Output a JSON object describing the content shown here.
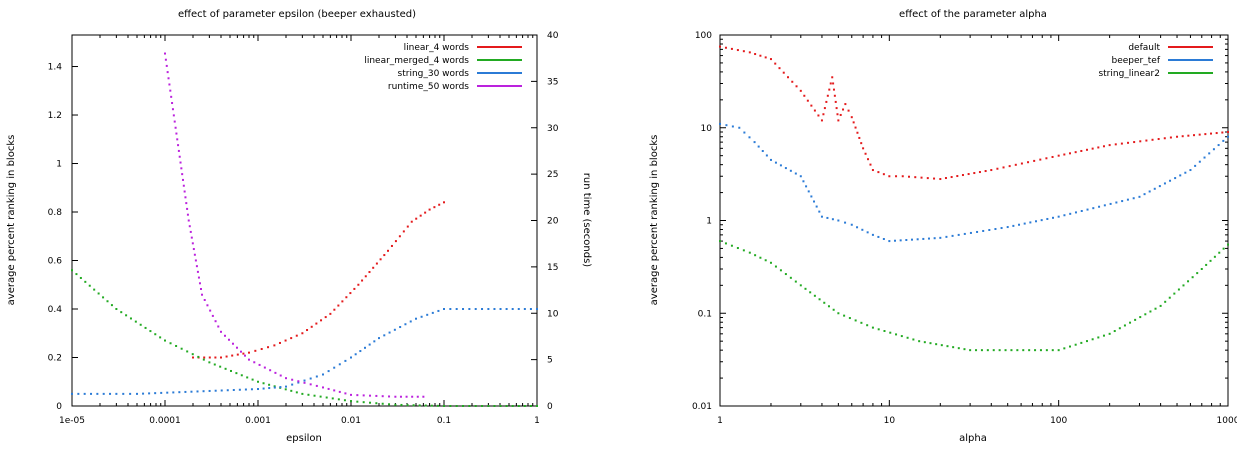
{
  "chart_data": [
    {
      "type": "line",
      "title": "effect of parameter epsilon (beeper exhausted)",
      "xlabel": "epsilon",
      "ylabel": "average percent ranking in blocks",
      "y2label": "run time (seconds)",
      "xscale": "log",
      "xticks": [
        "1e-05",
        "0.0001",
        "0.001",
        "0.01",
        "0.1",
        "1"
      ],
      "xtick_values": [
        1e-05,
        0.0001,
        0.001,
        0.01,
        0.1,
        1
      ],
      "yticks": [
        "0",
        "0.2",
        "0.4",
        "0.6",
        "0.8",
        "1",
        "1.2",
        "1.4"
      ],
      "y2ticks": [
        "0",
        "5",
        "10",
        "15",
        "20",
        "25",
        "30",
        "35",
        "40"
      ],
      "xlim": [
        1e-05,
        1
      ],
      "ylim": [
        0,
        1.53
      ],
      "y2lim": [
        0,
        40
      ],
      "legend_position": "top-right",
      "series": [
        {
          "name": "linear_4 words",
          "color": "#e41a1c",
          "axis": "y",
          "style": "dots",
          "points": [
            [
              0.0002,
              0.2
            ],
            [
              0.0004,
              0.2
            ],
            [
              0.0008,
              0.22
            ],
            [
              0.0015,
              0.25
            ],
            [
              0.003,
              0.3
            ],
            [
              0.006,
              0.38
            ],
            [
              0.012,
              0.5
            ],
            [
              0.025,
              0.64
            ],
            [
              0.045,
              0.76
            ],
            [
              0.07,
              0.81
            ],
            [
              0.1,
              0.84
            ]
          ]
        },
        {
          "name": "linear_merged_4 words",
          "color": "#22aa22",
          "axis": "y",
          "style": "dots",
          "points": [
            [
              1e-05,
              0.56
            ],
            [
              3e-05,
              0.4
            ],
            [
              0.0001,
              0.27
            ],
            [
              0.0003,
              0.18
            ],
            [
              0.001,
              0.1
            ],
            [
              0.003,
              0.05
            ],
            [
              0.01,
              0.02
            ],
            [
              0.03,
              0.005
            ],
            [
              0.1,
              0.0
            ],
            [
              0.3,
              0.0
            ],
            [
              1,
              0.0
            ]
          ]
        },
        {
          "name": "string_30 words",
          "color": "#2b7bd6",
          "axis": "y",
          "style": "dots",
          "points": [
            [
              1e-05,
              0.05
            ],
            [
              3e-05,
              0.05
            ],
            [
              5e-05,
              0.05
            ],
            [
              0.001,
              0.07
            ],
            [
              0.002,
              0.08
            ],
            [
              0.005,
              0.13
            ],
            [
              0.01,
              0.2
            ],
            [
              0.02,
              0.28
            ],
            [
              0.05,
              0.36
            ],
            [
              0.1,
              0.4
            ],
            [
              0.3,
              0.4
            ],
            [
              1,
              0.4
            ]
          ]
        },
        {
          "name": "runtime_50 words",
          "color": "#bb22dd",
          "axis": "y2",
          "style": "dots",
          "points": [
            [
              0.0001,
              38
            ],
            [
              0.00013,
              30
            ],
            [
              0.00018,
              20
            ],
            [
              0.00025,
              12
            ],
            [
              0.0004,
              8
            ],
            [
              0.0008,
              5
            ],
            [
              0.002,
              3
            ],
            [
              0.005,
              2
            ],
            [
              0.01,
              1.2
            ],
            [
              0.03,
              1
            ],
            [
              0.06,
              1
            ]
          ]
        }
      ]
    },
    {
      "type": "line",
      "title": "effect of the parameter alpha",
      "xlabel": "alpha",
      "ylabel": "average percent ranking in blocks",
      "xscale": "log",
      "yscale": "log",
      "xticks": [
        "1",
        "10",
        "100",
        "1000"
      ],
      "xtick_values": [
        1,
        10,
        100,
        1000
      ],
      "yticks": [
        "0.01",
        "0.1",
        "1",
        "10",
        "100"
      ],
      "ytick_values": [
        0.01,
        0.1,
        1,
        10,
        100
      ],
      "xlim": [
        1,
        1000
      ],
      "ylim": [
        0.01,
        100
      ],
      "legend_position": "top-right",
      "series": [
        {
          "name": "default",
          "color": "#e41a1c",
          "style": "dots",
          "points": [
            [
              1,
              75
            ],
            [
              1.5,
              65
            ],
            [
              2,
              55
            ],
            [
              3,
              25
            ],
            [
              4,
              12
            ],
            [
              4.6,
              35
            ],
            [
              5,
              12
            ],
            [
              5.5,
              18
            ],
            [
              6,
              13
            ],
            [
              7,
              6
            ],
            [
              8,
              3.5
            ],
            [
              10,
              3
            ],
            [
              12,
              3
            ],
            [
              20,
              2.8
            ],
            [
              40,
              3.5
            ],
            [
              100,
              5
            ],
            [
              200,
              6.5
            ],
            [
              500,
              8
            ],
            [
              1000,
              9
            ]
          ]
        },
        {
          "name": "beeper_tef",
          "color": "#2b7bd6",
          "style": "dots",
          "points": [
            [
              1,
              11
            ],
            [
              1.3,
              10
            ],
            [
              1.6,
              7
            ],
            [
              2,
              4.5
            ],
            [
              3,
              3
            ],
            [
              4,
              1.1
            ],
            [
              5,
              1
            ],
            [
              6,
              0.9
            ],
            [
              8,
              0.7
            ],
            [
              10,
              0.6
            ],
            [
              20,
              0.65
            ],
            [
              50,
              0.85
            ],
            [
              100,
              1.1
            ],
            [
              300,
              1.8
            ],
            [
              600,
              3.5
            ],
            [
              1000,
              8
            ]
          ]
        },
        {
          "name": "string_linear2",
          "color": "#22aa22",
          "style": "dots",
          "points": [
            [
              1,
              0.6
            ],
            [
              1.5,
              0.45
            ],
            [
              2,
              0.35
            ],
            [
              3,
              0.2
            ],
            [
              5,
              0.1
            ],
            [
              8,
              0.07
            ],
            [
              15,
              0.05
            ],
            [
              30,
              0.04
            ],
            [
              100,
              0.04
            ],
            [
              200,
              0.06
            ],
            [
              400,
              0.12
            ],
            [
              700,
              0.3
            ],
            [
              1000,
              0.55
            ]
          ]
        }
      ]
    }
  ]
}
